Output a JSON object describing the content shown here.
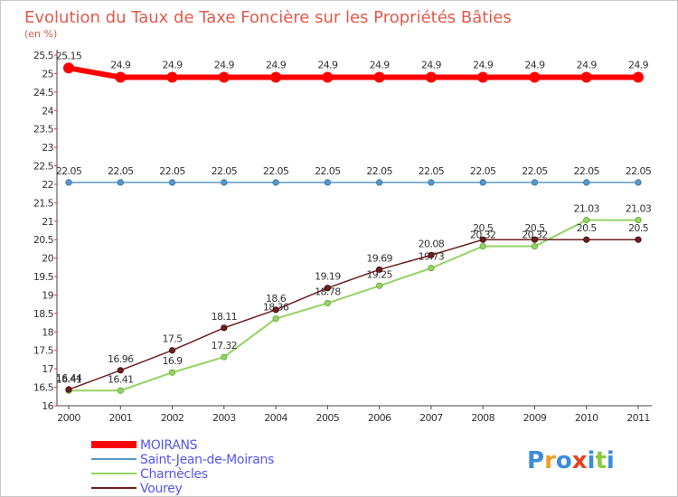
{
  "chart_data": {
    "type": "line",
    "title": "Evolution du Taux de Taxe Foncière sur les Propriétés Bâties",
    "subtitle": "(en %)",
    "xlabel": "",
    "ylabel": "(en %)",
    "x": [
      "2000",
      "2001",
      "2002",
      "2003",
      "2004",
      "2005",
      "2006",
      "2007",
      "2008",
      "2009",
      "2010",
      "2011"
    ],
    "ylim": [
      16,
      25.5
    ],
    "yticks": [
      "16",
      "16.5",
      "17",
      "17.5",
      "18",
      "18.5",
      "19",
      "19.5",
      "20",
      "20.5",
      "21",
      "21.5",
      "22",
      "22.5",
      "23",
      "23.5",
      "24",
      "24.5",
      "25",
      "25.5"
    ],
    "grid": false,
    "legend": "bottom-left",
    "series": [
      {
        "name": "MOIRANS",
        "color": "#ff0000",
        "values": [
          25.15,
          24.9,
          24.9,
          24.9,
          24.9,
          24.9,
          24.9,
          24.9,
          24.9,
          24.9,
          24.9,
          24.9
        ],
        "labels": [
          "25.15",
          "24.9",
          "24.9",
          "24.9",
          "24.9",
          "24.9",
          "24.9",
          "24.9",
          "24.9",
          "24.9",
          "24.9",
          "24.9"
        ]
      },
      {
        "name": "Saint-Jean-de-Moirans",
        "color": "#5a96c8",
        "values": [
          22.05,
          22.05,
          22.05,
          22.05,
          22.05,
          22.05,
          22.05,
          22.05,
          22.05,
          22.05,
          22.05,
          22.05
        ],
        "labels": [
          "22.05",
          "22.05",
          "22.05",
          "22.05",
          "22.05",
          "22.05",
          "22.05",
          "22.05",
          "22.05",
          "22.05",
          "22.05",
          "22.05"
        ]
      },
      {
        "name": "Charnècles",
        "color": "#96d264",
        "values": [
          16.41,
          16.41,
          16.9,
          17.32,
          18.36,
          18.78,
          19.25,
          19.73,
          20.32,
          20.32,
          21.03,
          21.03
        ],
        "labels": [
          "16.41",
          "16.41",
          "16.9",
          "17.32",
          "18.36",
          "18.78",
          "19.25",
          "19.73",
          "20.32",
          "20.32",
          "21.03",
          "21.03"
        ]
      },
      {
        "name": "Vourey",
        "color": "#6e1e1e",
        "values": [
          16.44,
          16.96,
          17.5,
          18.11,
          18.6,
          19.19,
          19.69,
          20.08,
          20.5,
          20.5,
          20.5,
          20.5
        ],
        "labels": [
          "16.44",
          "16.96",
          "17.5",
          "18.11",
          "18.6",
          "19.19",
          "19.69",
          "20.08",
          "20.5",
          "20.5",
          "20.5",
          "20.5"
        ]
      }
    ]
  },
  "logo": {
    "letters": [
      "P",
      "r",
      "o",
      "x",
      "i",
      "t",
      "i"
    ],
    "colors": [
      "#3c8cdc",
      "#f0a020",
      "#3c8cdc",
      "#e84020",
      "#3c8cdc",
      "#8cc83c",
      "#3c8cdc"
    ]
  }
}
